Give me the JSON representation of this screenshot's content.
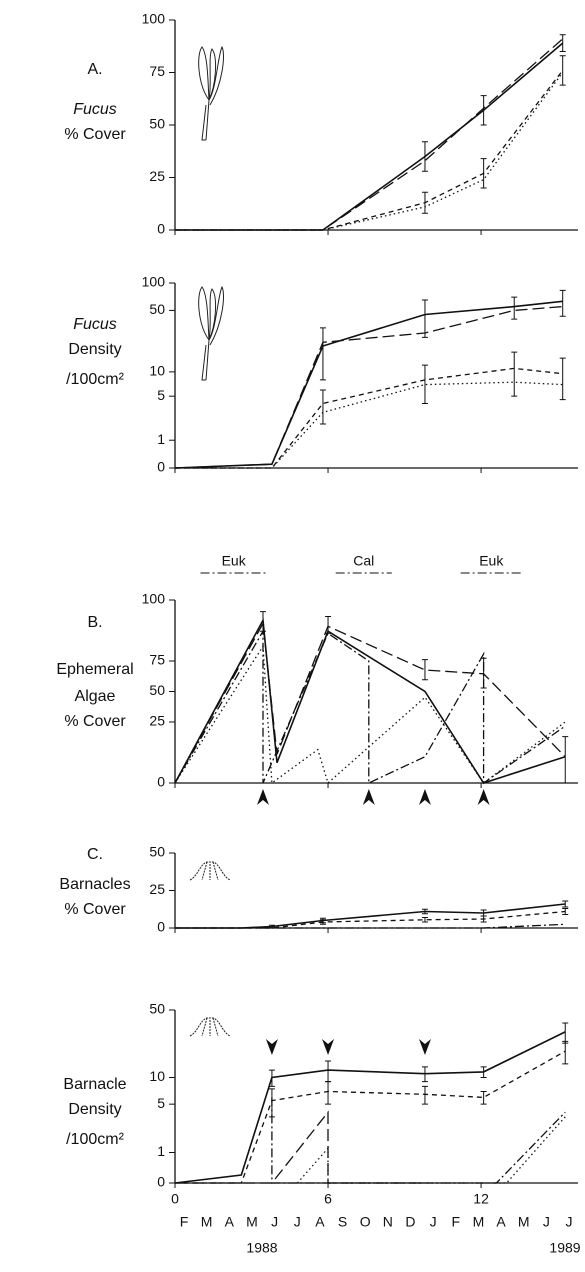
{
  "chart_data": [
    {
      "type": "line",
      "panel_label": "A.",
      "ylabel": [
        "Fucus",
        "% Cover"
      ],
      "italic_lines": [
        0
      ],
      "icon": "fucus",
      "xlim": [
        0,
        15.8
      ],
      "xticks": [
        0,
        6,
        12
      ],
      "ylim": [
        0,
        100
      ],
      "yticks": [
        0,
        25,
        50,
        75,
        100
      ],
      "yscale": "linear",
      "x": [
        0,
        5.8,
        9.8,
        12.1,
        15.2
      ],
      "series": [
        {
          "color": "#111",
          "dash": "solid",
          "values": [
            0,
            0,
            35,
            57,
            89
          ],
          "errors": [
            null,
            null,
            7,
            7,
            4
          ]
        },
        {
          "color": "#111",
          "dash": "long",
          "values": [
            0,
            0,
            33,
            58,
            91
          ]
        },
        {
          "color": "#111",
          "dash": "short",
          "values": [
            0,
            0,
            13,
            27,
            76
          ],
          "errors": [
            null,
            null,
            5,
            7,
            7
          ]
        },
        {
          "color": "#111",
          "dash": "dotted",
          "values": [
            0,
            0,
            11,
            24,
            75
          ]
        }
      ]
    },
    {
      "type": "line",
      "ylabel": [
        "Fucus",
        "Density",
        "/100cm²"
      ],
      "italic_lines": [
        0
      ],
      "icon": "fucus",
      "xlim": [
        0,
        15.8
      ],
      "xticks": [
        0,
        6,
        12
      ],
      "ylim": [
        0,
        100
      ],
      "yticks": [
        0,
        1,
        5,
        10,
        50,
        100
      ],
      "yscale": "log1p",
      "x": [
        0,
        3.8,
        5.8,
        9.8,
        13.3,
        15.2
      ],
      "series": [
        {
          "color": "#111",
          "dash": "solid",
          "values": [
            0,
            0.1,
            20,
            45,
            55,
            63
          ],
          "errors": [
            null,
            null,
            12,
            20,
            15,
            20
          ]
        },
        {
          "color": "#111",
          "dash": "long",
          "values": [
            0,
            0.1,
            22,
            28,
            50,
            55
          ]
        },
        {
          "color": "#111",
          "dash": "short",
          "values": [
            0,
            0,
            4,
            8,
            11,
            9.5
          ],
          "errors": [
            null,
            null,
            2,
            4,
            6,
            5
          ]
        },
        {
          "color": "#111",
          "dash": "dotted",
          "values": [
            0,
            0,
            3,
            7,
            7.5,
            7
          ]
        }
      ]
    },
    {
      "type": "line",
      "panel_label": "B.",
      "ylabel": [
        "Ephemeral",
        "Algae",
        "% Cover"
      ],
      "italic_lines": [],
      "xlim": [
        0,
        15.8
      ],
      "xticks": [
        0,
        6,
        12
      ],
      "ylim": [
        0,
        100
      ],
      "yticks": [
        0,
        25,
        50,
        75,
        100
      ],
      "yscale": "arcsine",
      "periods": [
        {
          "label": "Euk",
          "start": 1,
          "end": 3.6
        },
        {
          "label": "Cal",
          "start": 6.3,
          "end": 8.5
        },
        {
          "label": "Euk",
          "start": 11.2,
          "end": 13.6
        }
      ],
      "arrows_up": [
        3.45,
        7.6,
        9.8,
        12.1
      ],
      "series": [
        {
          "color": "#111",
          "dash": "solid",
          "x": [
            0,
            3.45,
            4.0,
            6.0,
            9.8,
            12.1,
            15.3
          ],
          "values": [
            0,
            97,
            3,
            93,
            50,
            0,
            5
          ]
        },
        {
          "color": "#111",
          "dash": "long",
          "x": [
            0,
            3.45,
            4.0,
            6.0,
            9.8,
            12.1,
            15.3
          ],
          "values": [
            0,
            96,
            6,
            95,
            68,
            65,
            5
          ],
          "errors": [
            null,
            3,
            null,
            3,
            8,
            12,
            10
          ]
        },
        {
          "color": "#111",
          "dash": "dashdot",
          "x": [
            0,
            3.45,
            3.45,
            6.0,
            7.6,
            7.6,
            9.8,
            12.1,
            12.1,
            15.3
          ],
          "values": [
            0,
            93,
            0,
            92,
            75,
            0,
            5,
            80,
            0,
            22
          ]
        },
        {
          "color": "#111",
          "dash": "dotted",
          "x": [
            0,
            3.45,
            3.8,
            5.6,
            6.0,
            9.8,
            12.1,
            15.3
          ],
          "values": [
            0,
            85,
            0,
            8,
            0,
            45,
            0,
            25
          ]
        }
      ]
    },
    {
      "type": "line",
      "panel_label": "C.",
      "ylabel": [
        "Barnacles",
        "% Cover"
      ],
      "italic_lines": [],
      "icon": "barnacle",
      "xlim": [
        0,
        15.8
      ],
      "xticks": [
        0,
        6,
        12
      ],
      "ylim": [
        0,
        50
      ],
      "yticks": [
        0,
        25,
        50
      ],
      "yscale": "linear",
      "x": [
        0,
        2.6,
        3.8,
        5.8,
        9.8,
        12.1,
        15.3
      ],
      "series": [
        {
          "color": "#111",
          "dash": "solid",
          "values": [
            0,
            0,
            1,
            5,
            11,
            10,
            16
          ],
          "errors": [
            null,
            null,
            0.8,
            1.5,
            1.5,
            2,
            2
          ]
        },
        {
          "color": "#111",
          "dash": "short",
          "values": [
            0,
            0,
            0,
            4,
            5.5,
            6,
            11
          ],
          "errors": [
            null,
            null,
            null,
            1.5,
            1.5,
            2,
            2
          ]
        },
        {
          "color": "#111",
          "dash": "dashdot",
          "x": [
            0,
            12.1,
            15.3
          ],
          "values": [
            0,
            0,
            2.5
          ]
        }
      ]
    },
    {
      "type": "line",
      "ylabel": [
        "Barnacle",
        "Density",
        "/100cm²"
      ],
      "italic_lines": [],
      "icon": "barnacle",
      "xlim": [
        0,
        15.8
      ],
      "xticks": [
        0,
        6,
        12
      ],
      "ylim": [
        0,
        50
      ],
      "yticks": [
        0,
        1,
        5,
        10,
        50
      ],
      "yscale": "log1p",
      "x": [
        0,
        2.6,
        3.8,
        6.0,
        9.8,
        12.1,
        15.3
      ],
      "arrows_down": [
        3.8,
        6.0,
        9.8
      ],
      "month_labels": [
        "F",
        "M",
        "A",
        "M",
        "J",
        "J",
        "A",
        "S",
        "O",
        "N",
        "D",
        "J",
        "F",
        "M",
        "A",
        "M",
        "J",
        "J"
      ],
      "year_labels": [
        "1988",
        "1989"
      ],
      "series": [
        {
          "color": "#111",
          "dash": "solid",
          "values": [
            0,
            0.2,
            10,
            12,
            11,
            11.5,
            30
          ],
          "errors": [
            null,
            null,
            2,
            3,
            2,
            1.5,
            7
          ]
        },
        {
          "color": "#111",
          "dash": "short",
          "values": [
            0,
            0,
            5.5,
            7,
            6.5,
            6,
            19
          ],
          "errors": [
            null,
            null,
            2,
            2,
            1.5,
            1,
            5
          ]
        },
        {
          "color": "#111",
          "dash": "long",
          "x": [
            0,
            3.8,
            6.0,
            6.0,
            9.8
          ],
          "values": [
            0,
            0,
            4,
            0,
            0
          ]
        },
        {
          "color": "#111",
          "dash": "dashdot",
          "x": [
            3.8,
            3.8,
            4.8,
            12.6,
            15.3
          ],
          "values": [
            6,
            0,
            0,
            0,
            4
          ]
        },
        {
          "color": "#111",
          "dash": "dotted",
          "x": [
            4.8,
            6.0,
            6.0,
            13.0,
            15.3
          ],
          "values": [
            0,
            1.2,
            0,
            0,
            3.5
          ]
        }
      ]
    }
  ]
}
